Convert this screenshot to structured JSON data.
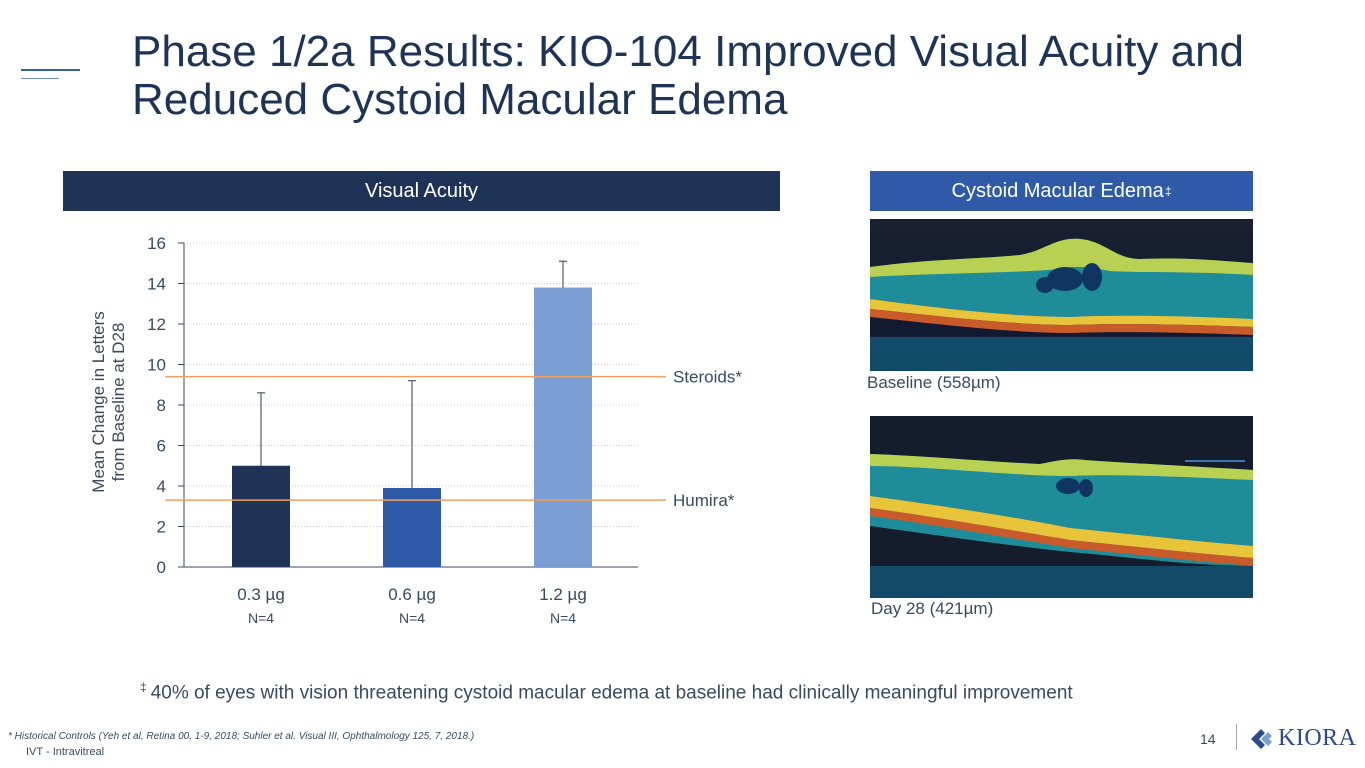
{
  "slide": {
    "title": "Phase 1/2a Results: KIO-104 Improved Visual Acuity and Reduced Cystoid Macular Edema",
    "page_number": "14",
    "logo_text": "KIORA"
  },
  "panels": {
    "visual_acuity_header": "Visual Acuity",
    "cme_header": "Cystoid Macular Edema",
    "cme_header_mark": "‡"
  },
  "oct_images": [
    {
      "caption": "Baseline (558µm)"
    },
    {
      "caption": "Day 28 (421µm)"
    }
  ],
  "footnote": {
    "mark": "‡",
    "text": "40% of eyes with vision threatening cystoid macular edema at baseline had clinically meaningful improvement"
  },
  "references": {
    "historical": "* Historical Controls (Yeh et al, Retina 00, 1-9, 2018; Suhler et al. Visual III, Ophthalmology 125, 7, 2018.)",
    "abbrev": "IVT - Intravitreal"
  },
  "colors": {
    "navy": "#1f3356",
    "mid_blue": "#2e5aa8",
    "light_blue": "#7b9fd4",
    "reference_line": "#f0a060"
  },
  "chart_data": {
    "type": "bar",
    "ylabel_line1": "Mean Change in Letters",
    "ylabel_line2": "from Baseline at D28",
    "ylim": [
      0,
      16
    ],
    "yticks": [
      0,
      2,
      4,
      6,
      8,
      10,
      12,
      14,
      16
    ],
    "categories": [
      "0.3 µg",
      "0.6 µg",
      "1.2 µg"
    ],
    "sublabels": [
      "N=4",
      "N=4",
      "N=4"
    ],
    "values": [
      5.0,
      3.9,
      13.8
    ],
    "error_upper": [
      8.6,
      9.2,
      15.1
    ],
    "bar_colors": [
      "#1f3356",
      "#2e5aa8",
      "#7b9fd4"
    ],
    "reference_lines": [
      {
        "label": "Steroids*",
        "value": 9.4
      },
      {
        "label": "Humira*",
        "value": 3.3
      }
    ],
    "grid": true
  }
}
